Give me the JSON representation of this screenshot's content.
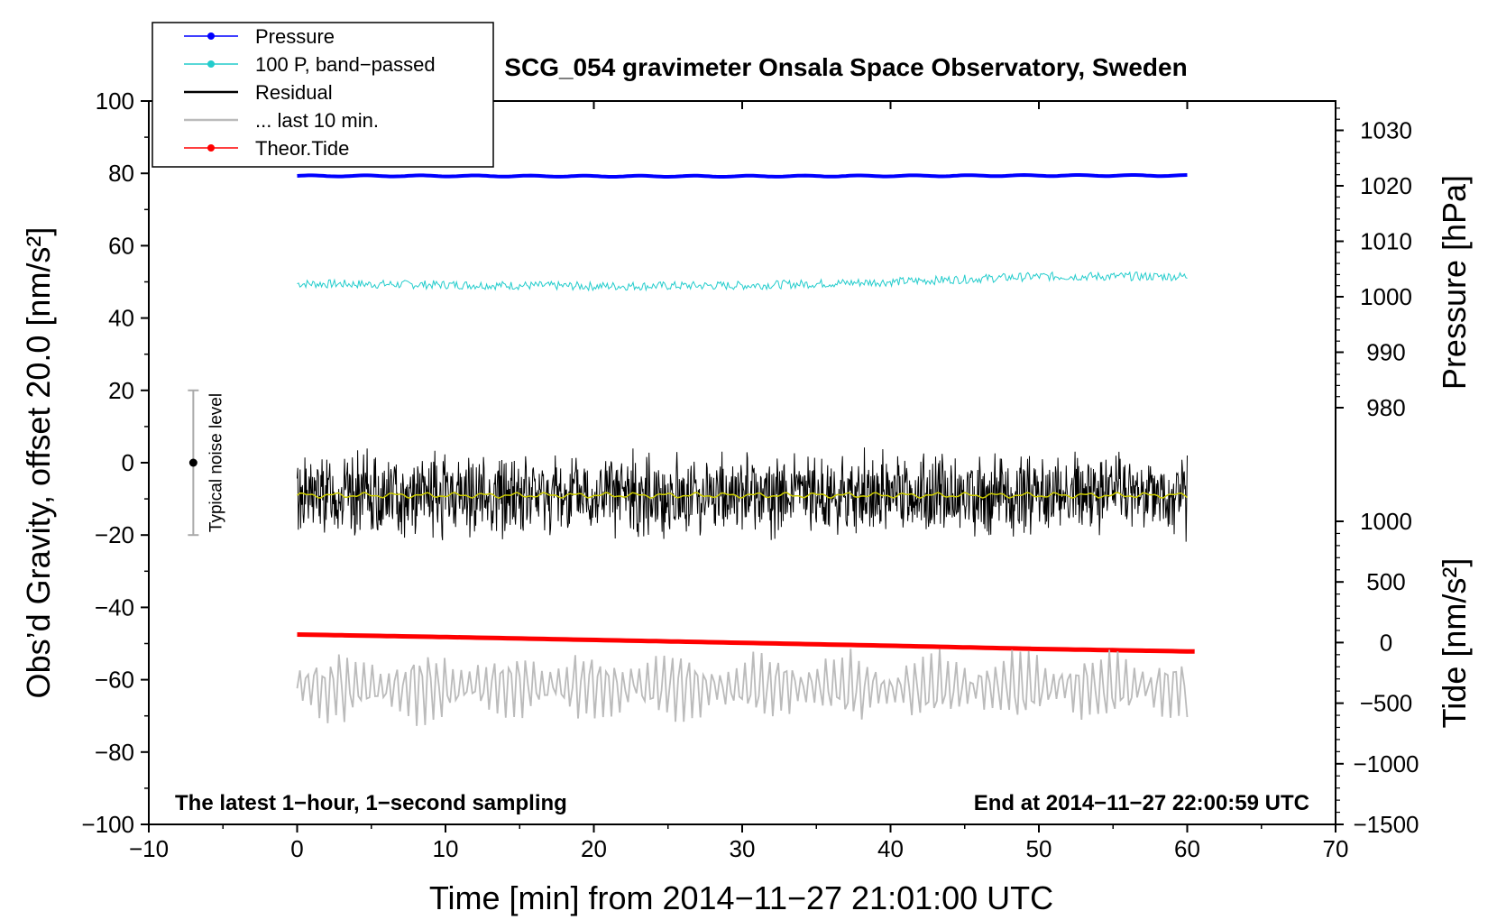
{
  "chart_data": {
    "type": "line",
    "title": "SCG_054 gravimeter Onsala Space Observatory, Sweden",
    "xlabel": "Time [min] from 2014−11−27 21:01:00 UTC",
    "ylabel_left": "Obs’d Gravity, offset 20.0 [nm/s²]",
    "ylabel_right_pressure": "Pressure [hPa]",
    "ylabel_right_tide": "Tide [nm/s²]",
    "xlim": [
      -10,
      70
    ],
    "ylim": [
      -100,
      100
    ],
    "x_ticks": [
      "−10",
      "0",
      "10",
      "20",
      "30",
      "40",
      "50",
      "60",
      "70"
    ],
    "y_ticks": [
      "−100",
      "−80",
      "−60",
      "−40",
      "−20",
      "0",
      "20",
      "40",
      "60",
      "80",
      "100"
    ],
    "pressure_ticks": [
      "980",
      "990",
      "1000",
      "1010",
      "1020",
      "1030"
    ],
    "tide_ticks": [
      "−1500",
      "−1000",
      "−500",
      "0",
      "500",
      "1000"
    ],
    "note_left": "The latest 1−hour, 1−second sampling",
    "note_right": "End at 2014−11−27 22:00:59 UTC",
    "noise_label": "Typical noise level",
    "noise_bar": {
      "x": -7,
      "center": 0,
      "low": -20,
      "high": 20
    },
    "legend": [
      {
        "label": "Pressure",
        "color": "#0000ff",
        "marker": true
      },
      {
        "label": "100 P, band−passed",
        "color": "#22cccc",
        "marker": true
      },
      {
        "label": "Residual",
        "color": "#000000",
        "marker": false
      },
      {
        "label": "... last 10 min.",
        "color": "#bbbbbb",
        "marker": false
      },
      {
        "label": "Theor.Tide",
        "color": "#ff0000",
        "marker": true
      }
    ],
    "series": [
      {
        "name": "Pressure",
        "color": "#0000ff",
        "x": [
          0,
          10,
          20,
          30,
          40,
          50,
          60
        ],
        "values": [
          79.3,
          79.3,
          79.2,
          79.2,
          79.3,
          79.4,
          79.4
        ]
      },
      {
        "name": "100 P, band-passed",
        "color": "#22cccc",
        "x": [
          0,
          10,
          20,
          30,
          40,
          50,
          60
        ],
        "values": [
          49.5,
          49.2,
          48.8,
          49.0,
          50.0,
          51.5,
          51.5
        ],
        "noise_amplitude": 1.2
      },
      {
        "name": "Residual",
        "color": "#000000",
        "x": [
          0,
          10,
          20,
          30,
          40,
          50,
          60
        ],
        "values": [
          -9,
          -9,
          -9,
          -9,
          -9,
          -9,
          -9
        ],
        "noise_amplitude": 9
      },
      {
        "name": "Residual smoothed",
        "color": "#cccc00",
        "x": [
          0,
          10,
          20,
          30,
          40,
          50,
          60
        ],
        "values": [
          -9,
          -9,
          -9,
          -9,
          -9,
          -9,
          -9
        ]
      },
      {
        "name": "Theor.Tide",
        "color": "#ff0000",
        "x": [
          0,
          10,
          20,
          30,
          40,
          50,
          60.5
        ],
        "values": [
          -47.5,
          -48.2,
          -49.0,
          -49.8,
          -50.6,
          -51.5,
          -52.2
        ]
      },
      {
        "name": "... last 10 min.",
        "color": "#bbbbbb",
        "x": [
          0,
          10,
          20,
          30,
          40,
          50,
          60
        ],
        "values": [
          -62,
          -62,
          -62,
          -62,
          -62,
          -62,
          -62
        ],
        "noise_amplitude": 8
      }
    ]
  }
}
